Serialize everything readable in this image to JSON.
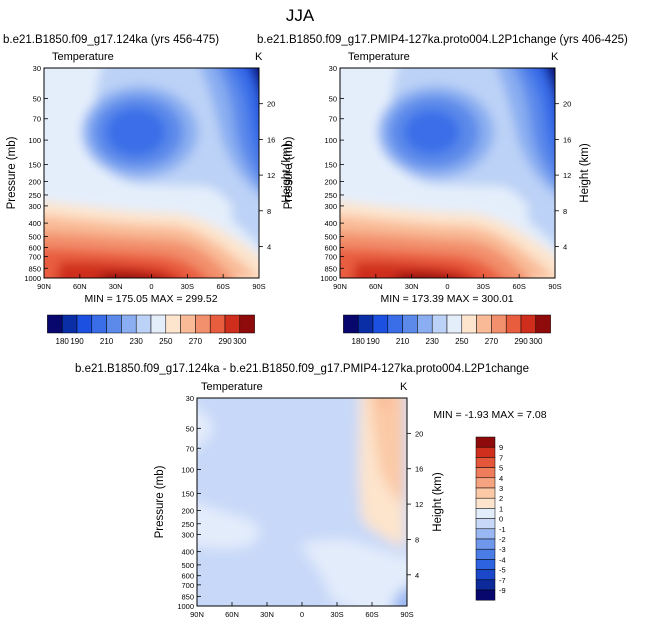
{
  "page_title": "JJA",
  "panels": [
    {
      "id": "p1",
      "title": "b.e21.B1850.f09_g17.124ka (yrs 456-475)",
      "variable": "Temperature",
      "units": "K",
      "min_max": "MIN = 175.05  MAX = 299.52",
      "ylabel": "Pressure (mb)",
      "y2label": "Height (km)"
    },
    {
      "id": "p2",
      "title": "b.e21.B1850.f09_g17.PMIP4-127ka.proto004.L2P1change (yrs 406-425)",
      "variable": "Temperature",
      "units": "K",
      "min_max": "MIN = 173.39  MAX = 300.01",
      "ylabel": "Pressure (mb)",
      "y2label": "Height (km)"
    },
    {
      "id": "p3",
      "title": "b.e21.B1850.f09_g17.124ka - b.e21.B1850.f09_g17.PMIP4-127ka.proto004.L2P1change",
      "variable": "Temperature",
      "units": "K",
      "min_max": "MIN =  -1.93  MAX =   7.08",
      "ylabel": "Pressure (mb)",
      "y2label": "Height (km)"
    }
  ],
  "chart_data": [
    {
      "type": "heatmap",
      "title": "b.e21.B1850.f09_g17.124ka (yrs 456-475)",
      "xlabel": "",
      "ylabel": "Pressure (mb)",
      "y2label": "Height (km)",
      "x_ticks": [
        "90N",
        "60N",
        "30N",
        "0",
        "30S",
        "60S",
        "90S"
      ],
      "y_ticks": [
        "30",
        "50",
        "70",
        "100",
        "150",
        "200",
        "250",
        "300",
        "400",
        "500",
        "600",
        "700",
        "850",
        "1000"
      ],
      "y2_ticks": [
        "20",
        "16",
        "12",
        "8",
        "4"
      ],
      "colorbar_labels": [
        "180",
        "190",
        "210",
        "230",
        "250",
        "270",
        "290",
        "300"
      ],
      "min": 175.05,
      "max": 299.52,
      "log_pressure_axis": true
    },
    {
      "type": "heatmap",
      "title": "b.e21.B1850.f09_g17.PMIP4-127ka.proto004.L2P1change (yrs 406-425)",
      "xlabel": "",
      "ylabel": "Pressure (mb)",
      "y2label": "Height (km)",
      "x_ticks": [
        "90N",
        "60N",
        "30N",
        "0",
        "30S",
        "60S",
        "90S"
      ],
      "y_ticks": [
        "30",
        "50",
        "70",
        "100",
        "150",
        "200",
        "250",
        "300",
        "400",
        "500",
        "600",
        "700",
        "850",
        "1000"
      ],
      "y2_ticks": [
        "20",
        "16",
        "12",
        "8",
        "4"
      ],
      "colorbar_labels": [
        "180",
        "190",
        "210",
        "230",
        "250",
        "270",
        "290",
        "300"
      ],
      "min": 173.39,
      "max": 300.01,
      "log_pressure_axis": true
    },
    {
      "type": "heatmap",
      "title": "b.e21.B1850.f09_g17.124ka - b.e21.B1850.f09_g17.PMIP4-127ka.proto004.L2P1change",
      "xlabel": "",
      "ylabel": "Pressure (mb)",
      "y2label": "Height (km)",
      "x_ticks": [
        "90N",
        "60N",
        "30N",
        "0",
        "30S",
        "60S",
        "90S"
      ],
      "y_ticks": [
        "30",
        "50",
        "70",
        "100",
        "150",
        "200",
        "250",
        "300",
        "400",
        "500",
        "600",
        "700",
        "850",
        "1000"
      ],
      "y2_ticks": [
        "20",
        "16",
        "12",
        "8",
        "4"
      ],
      "colorbar_labels": [
        "9",
        "7",
        "5",
        "4",
        "3",
        "2",
        "1",
        "0",
        "-1",
        "-2",
        "-3",
        "-4",
        "-5",
        "-7",
        "-9"
      ],
      "min": -1.93,
      "max": 7.08,
      "log_pressure_axis": true
    }
  ],
  "palette": {
    "blue_red_13": [
      "#08076e",
      "#0a2ea6",
      "#1c50e0",
      "#3a6ee8",
      "#5b8aea",
      "#8aaef1",
      "#bcd2f6",
      "#e4eefb",
      "#fde4cc",
      "#f9bb97",
      "#f28f6c",
      "#e95d3f",
      "#cf2e1c",
      "#8f0b0b"
    ],
    "diff_16": [
      "#08076e",
      "#0c2a9a",
      "#1a48c8",
      "#2d62e0",
      "#4a7ce6",
      "#6f98ec",
      "#99b7f2",
      "#c7d8f8",
      "#e3ecfb",
      "#fde4cc",
      "#fbc9a6",
      "#f5a381",
      "#ef7c5a",
      "#e5573a",
      "#d02f1d",
      "#8f0b0b"
    ]
  }
}
